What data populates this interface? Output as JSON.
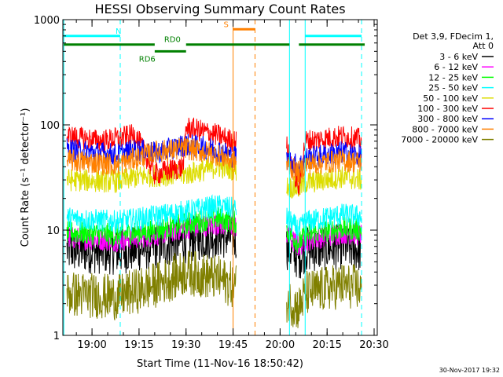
{
  "chart_data": {
    "type": "line",
    "title": "HESSI Observing Summary Count Rates",
    "xlabel": "Start Time (11-Nov-16 18:50:42)",
    "ylabel": "Count Rate (s⁻¹ detector⁻¹)",
    "y_scale": "log",
    "xlim": [
      "18:50:42",
      "20:31:00"
    ],
    "ylim": [
      1,
      1000
    ],
    "grid": false,
    "legend_position": "right",
    "x_ticks": [
      "19:00",
      "19:15",
      "19:30",
      "19:45",
      "20:00",
      "20:15",
      "20:30"
    ],
    "y_ticks": [
      {
        "value": 1,
        "label": "1"
      },
      {
        "value": 10,
        "label": "10"
      },
      {
        "value": 100,
        "label": "100"
      },
      {
        "value": 1000,
        "label": "1000"
      }
    ],
    "legend_header": [
      "Det 3,9, FDecim 1,",
      "Att 0"
    ],
    "series": [
      {
        "name": "3 - 6 keV",
        "color": "#000000",
        "points": [
          [
            "18:52",
            6.5
          ],
          [
            "19:08",
            6.2
          ],
          [
            "19:20",
            7.0
          ],
          [
            "19:30",
            8.0
          ],
          [
            "19:40",
            9.0
          ],
          [
            "19:45",
            8.5
          ],
          [
            "20:02",
            7.0
          ],
          [
            "20:06",
            5.5
          ],
          [
            "20:08",
            6.5
          ],
          [
            "20:20",
            7.0
          ],
          [
            "20:26",
            6.5
          ]
        ]
      },
      {
        "name": "6 - 12 keV",
        "color": "#ff00ff",
        "points": [
          [
            "18:52",
            8.5
          ],
          [
            "19:08",
            8.0
          ],
          [
            "19:20",
            9.0
          ],
          [
            "19:30",
            10.5
          ],
          [
            "19:40",
            11.5
          ],
          [
            "19:45",
            11.0
          ],
          [
            "20:02",
            9.0
          ],
          [
            "20:06",
            7.0
          ],
          [
            "20:08",
            8.0
          ],
          [
            "20:20",
            9.5
          ],
          [
            "20:26",
            9.0
          ]
        ]
      },
      {
        "name": "12 - 25 keV",
        "color": "#00ff00",
        "points": [
          [
            "18:52",
            9.5
          ],
          [
            "19:08",
            9.0
          ],
          [
            "19:20",
            10.0
          ],
          [
            "19:30",
            11.5
          ],
          [
            "19:40",
            13.0
          ],
          [
            "19:45",
            12.0
          ],
          [
            "20:02",
            10.0
          ],
          [
            "20:06",
            7.5
          ],
          [
            "20:08",
            9.0
          ],
          [
            "20:20",
            10.5
          ],
          [
            "20:26",
            10.0
          ]
        ]
      },
      {
        "name": "25 - 50 keV",
        "color": "#00ffff",
        "points": [
          [
            "18:52",
            13.0
          ],
          [
            "19:08",
            12.0
          ],
          [
            "19:20",
            13.5
          ],
          [
            "19:30",
            15.0
          ],
          [
            "19:40",
            17.0
          ],
          [
            "19:45",
            16.0
          ],
          [
            "20:02",
            13.0
          ],
          [
            "20:06",
            10.0
          ],
          [
            "20:08",
            12.0
          ],
          [
            "20:20",
            14.0
          ],
          [
            "20:26",
            13.5
          ]
        ]
      },
      {
        "name": "50 - 100 keV",
        "color": "#dddd00",
        "points": [
          [
            "18:52",
            30.0
          ],
          [
            "19:08",
            29.0
          ],
          [
            "19:14",
            32.0
          ],
          [
            "19:20",
            33.0
          ],
          [
            "19:30",
            34.0
          ],
          [
            "19:40",
            40.0
          ],
          [
            "19:45",
            38.0
          ],
          [
            "20:02",
            26.0
          ],
          [
            "20:06",
            25.0
          ],
          [
            "20:08",
            28.0
          ],
          [
            "20:20",
            32.0
          ],
          [
            "20:26",
            30.0
          ]
        ]
      },
      {
        "name": "100 - 300 keV",
        "color": "#ff0000",
        "points": [
          [
            "18:52",
            78.0
          ],
          [
            "19:03",
            70.0
          ],
          [
            "19:14",
            80.0
          ],
          [
            "19:20",
            34.0
          ],
          [
            "19:29",
            40.0
          ],
          [
            "19:30",
            95.0
          ],
          [
            "19:40",
            80.0
          ],
          [
            "19:45",
            70.0
          ],
          [
            "20:02",
            65.0
          ],
          [
            "20:06",
            25.0
          ],
          [
            "20:08",
            70.0
          ],
          [
            "20:20",
            78.0
          ],
          [
            "20:26",
            72.0
          ]
        ]
      },
      {
        "name": "300 - 800 keV",
        "color": "#0000ff",
        "points": [
          [
            "18:52",
            58.0
          ],
          [
            "19:08",
            52.0
          ],
          [
            "19:14",
            58.0
          ],
          [
            "19:20",
            54.0
          ],
          [
            "19:30",
            65.0
          ],
          [
            "19:40",
            58.0
          ],
          [
            "19:45",
            50.0
          ],
          [
            "20:02",
            48.0
          ],
          [
            "20:06",
            40.0
          ],
          [
            "20:08",
            48.0
          ],
          [
            "20:20",
            55.0
          ],
          [
            "20:26",
            50.0
          ]
        ]
      },
      {
        "name": "800 - 7000 keV",
        "color": "#ff8000",
        "points": [
          [
            "18:52",
            46.0
          ],
          [
            "19:08",
            42.0
          ],
          [
            "19:14",
            48.0
          ],
          [
            "19:20",
            55.0
          ],
          [
            "19:30",
            60.0
          ],
          [
            "19:40",
            52.0
          ],
          [
            "19:45",
            45.0
          ],
          [
            "20:02",
            42.0
          ],
          [
            "20:06",
            35.0
          ],
          [
            "20:08",
            42.0
          ],
          [
            "20:20",
            46.0
          ],
          [
            "20:26",
            44.0
          ]
        ]
      },
      {
        "name": "7000 - 20000 keV",
        "color": "#808000",
        "points": [
          [
            "18:52",
            2.5
          ],
          [
            "19:08",
            2.3
          ],
          [
            "19:20",
            3.0
          ],
          [
            "19:30",
            4.0
          ],
          [
            "19:40",
            3.5
          ],
          [
            "19:45",
            3.0
          ],
          [
            "20:02",
            2.2
          ],
          [
            "20:06",
            1.8
          ],
          [
            "20:08",
            2.5
          ],
          [
            "20:20",
            3.0
          ],
          [
            "20:26",
            2.8
          ]
        ]
      }
    ],
    "annotations": [
      {
        "label": "N",
        "color": "#00ffff",
        "bars": [
          [
            "18:51",
            "19:09"
          ],
          [
            "20:08",
            "20:26"
          ]
        ],
        "y": 700
      },
      {
        "label": "S",
        "color": "#ff8000",
        "bars": [
          [
            "19:45",
            "19:52"
          ]
        ],
        "y": 810
      },
      {
        "label": "RD0",
        "color": "#008000",
        "bars": [
          [
            "18:51",
            "19:20"
          ],
          [
            "19:30",
            "20:03"
          ],
          [
            "20:06",
            "20:27"
          ]
        ],
        "y": 580
      },
      {
        "label": "RD6",
        "color": "#008000",
        "bars": [
          [
            "19:20",
            "19:30"
          ]
        ],
        "y": 500
      }
    ],
    "vertical_lines": [
      {
        "time": "18:51",
        "color": "#00ffff",
        "style": "solid"
      },
      {
        "time": "19:09",
        "color": "#00ffff",
        "style": "dashed"
      },
      {
        "time": "19:45",
        "color": "#ff8000",
        "style": "solid"
      },
      {
        "time": "19:52",
        "color": "#ff8000",
        "style": "dashed"
      },
      {
        "time": "20:03",
        "color": "#00ffff",
        "style": "solid"
      },
      {
        "time": "20:08",
        "color": "#00ffff",
        "style": "solid"
      },
      {
        "time": "20:26",
        "color": "#00ffff",
        "style": "dashed"
      }
    ],
    "gaps": [
      [
        "19:46",
        "20:02"
      ]
    ]
  },
  "footer_stamp": "30-Nov-2017 19:32"
}
